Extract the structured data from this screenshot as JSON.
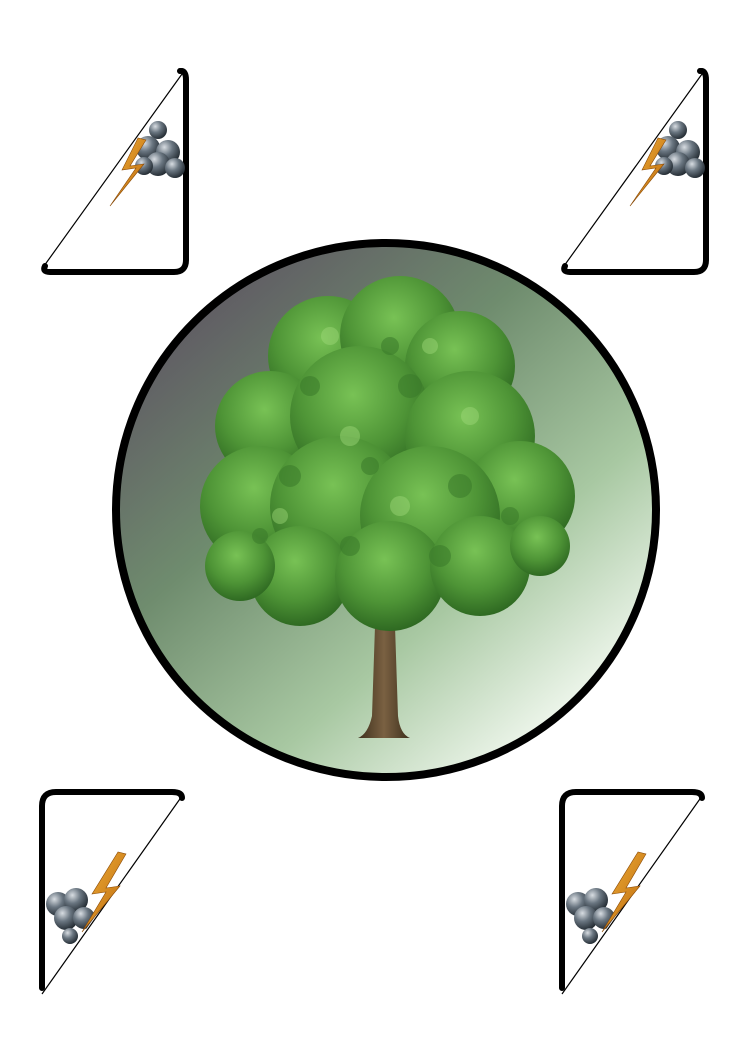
{
  "page": {
    "background": "#ffffff"
  },
  "medallion": {
    "border_color": "#000000",
    "gradient_colors": [
      "#5f5a63",
      "#6e8a6d",
      "#a9c9a3",
      "#f4faf2"
    ],
    "content_icon": "tree-icon",
    "canopy_color": "#4f9a3a",
    "trunk_color": "#5e4a2e"
  },
  "corners": [
    {
      "position": "top-left",
      "icon": "storm-cloud-lightning-icon"
    },
    {
      "position": "top-right",
      "icon": "storm-cloud-lightning-icon"
    },
    {
      "position": "bottom-left",
      "icon": "storm-cloud-lightning-icon"
    },
    {
      "position": "bottom-right",
      "icon": "storm-cloud-lightning-icon"
    }
  ],
  "colors": {
    "lightning": "#d98a1a",
    "cloud": "#3c4650",
    "frame": "#000000"
  }
}
